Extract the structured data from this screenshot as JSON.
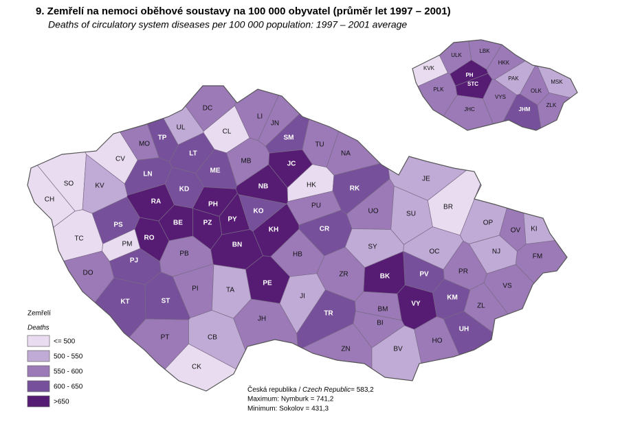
{
  "title": "9. Zemřelí na nemoci oběhové soustavy na 100 000 obyvatel (průměr let 1997 – 2001)",
  "subtitle": "Deaths of circulatory system diseases per 100 000 population: 1997 – 2001 average",
  "legend": {
    "title": "Zemřelí",
    "subtitle": "Deaths",
    "classes": [
      {
        "label": "<= 500",
        "color": "#e9dcf1"
      },
      {
        "label": "500 - 550",
        "color": "#c0aad6"
      },
      {
        "label": "550 - 600",
        "color": "#9b7ab7"
      },
      {
        "label": "600 - 650",
        "color": "#76509a"
      },
      {
        "label": ">650",
        "color": "#561c73"
      }
    ]
  },
  "districts": [
    {
      "code": "SO",
      "class": 0
    },
    {
      "code": "CH",
      "class": 0
    },
    {
      "code": "KV",
      "class": 1
    },
    {
      "code": "CV",
      "class": 0
    },
    {
      "code": "MO",
      "class": 2
    },
    {
      "code": "TP",
      "class": 3
    },
    {
      "code": "UL",
      "class": 1
    },
    {
      "code": "DC",
      "class": 2
    },
    {
      "code": "CL",
      "class": 0
    },
    {
      "code": "LI",
      "class": 2
    },
    {
      "code": "JN",
      "class": 2
    },
    {
      "code": "SM",
      "class": 3
    },
    {
      "code": "TU",
      "class": 2
    },
    {
      "code": "NA",
      "class": 2
    },
    {
      "code": "MB",
      "class": 2
    },
    {
      "code": "JC",
      "class": 4
    },
    {
      "code": "ME",
      "class": 3
    },
    {
      "code": "LT",
      "class": 3
    },
    {
      "code": "LN",
      "class": 3
    },
    {
      "code": "KD",
      "class": 3
    },
    {
      "code": "RA",
      "class": 4
    },
    {
      "code": "NB",
      "class": 4
    },
    {
      "code": "HK",
      "class": 0
    },
    {
      "code": "RK",
      "class": 3
    },
    {
      "code": "JE",
      "class": 1
    },
    {
      "code": "BR",
      "class": 0
    },
    {
      "code": "PH",
      "class": 4
    },
    {
      "code": "PZ",
      "class": 4
    },
    {
      "code": "BE",
      "class": 4
    },
    {
      "code": "PY",
      "class": 4
    },
    {
      "code": "KO",
      "class": 3
    },
    {
      "code": "KH",
      "class": 4
    },
    {
      "code": "PU",
      "class": 2
    },
    {
      "code": "UO",
      "class": 2
    },
    {
      "code": "SU",
      "class": 1
    },
    {
      "code": "OP",
      "class": 1
    },
    {
      "code": "KI",
      "class": 1
    },
    {
      "code": "OV",
      "class": 2
    },
    {
      "code": "CR",
      "class": 3
    },
    {
      "code": "PS",
      "class": 3
    },
    {
      "code": "RO",
      "class": 4
    },
    {
      "code": "PM",
      "class": 0
    },
    {
      "code": "TC",
      "class": 0
    },
    {
      "code": "BN",
      "class": 4
    },
    {
      "code": "PJ",
      "class": 3
    },
    {
      "code": "PB",
      "class": 2
    },
    {
      "code": "HB",
      "class": 2
    },
    {
      "code": "SY",
      "class": 1
    },
    {
      "code": "OC",
      "class": 1
    },
    {
      "code": "NJ",
      "class": 1
    },
    {
      "code": "FM",
      "class": 2
    },
    {
      "code": "DO",
      "class": 2
    },
    {
      "code": "PR",
      "class": 2
    },
    {
      "code": "PV",
      "class": 3
    },
    {
      "code": "BK",
      "class": 4
    },
    {
      "code": "ZR",
      "class": 2
    },
    {
      "code": "VS",
      "class": 2
    },
    {
      "code": "PE",
      "class": 4
    },
    {
      "code": "PI",
      "class": 2
    },
    {
      "code": "TA",
      "class": 1
    },
    {
      "code": "KT",
      "class": 3
    },
    {
      "code": "ST",
      "class": 3
    },
    {
      "code": "JI",
      "class": 1
    },
    {
      "code": "KM",
      "class": 3
    },
    {
      "code": "ZL",
      "class": 2
    },
    {
      "code": "VY",
      "class": 4
    },
    {
      "code": "BM",
      "class": 2
    },
    {
      "code": "TR",
      "class": 3
    },
    {
      "code": "BI",
      "class": 2
    },
    {
      "code": "JH",
      "class": 2
    },
    {
      "code": "UH",
      "class": 3
    },
    {
      "code": "PT",
      "class": 2
    },
    {
      "code": "CB",
      "class": 1
    },
    {
      "code": "HO",
      "class": 2
    },
    {
      "code": "ZN",
      "class": 2
    },
    {
      "code": "BV",
      "class": 1
    },
    {
      "code": "CK",
      "class": 0
    }
  ],
  "regions": [
    {
      "code": "ULK",
      "class": 2
    },
    {
      "code": "LBK",
      "class": 2
    },
    {
      "code": "KVK",
      "class": 0
    },
    {
      "code": "PH",
      "class": 4
    },
    {
      "code": "STC",
      "class": 4
    },
    {
      "code": "HKK",
      "class": 2
    },
    {
      "code": "PAK",
      "class": 1
    },
    {
      "code": "MSK",
      "class": 1
    },
    {
      "code": "PLK",
      "class": 2
    },
    {
      "code": "OLK",
      "class": 2
    },
    {
      "code": "VYS",
      "class": 2
    },
    {
      "code": "JHC",
      "class": 2
    },
    {
      "code": "JHM",
      "class": 3
    },
    {
      "code": "ZLK",
      "class": 2
    }
  ],
  "notes": {
    "country": "Česká republika / ",
    "country_en": "Czech Republic",
    "country_value": "= 583,2",
    "maximum": "Maximum: Nymburk  = 741,2",
    "minimum": "Minimum: Sokolov = 431,3"
  }
}
